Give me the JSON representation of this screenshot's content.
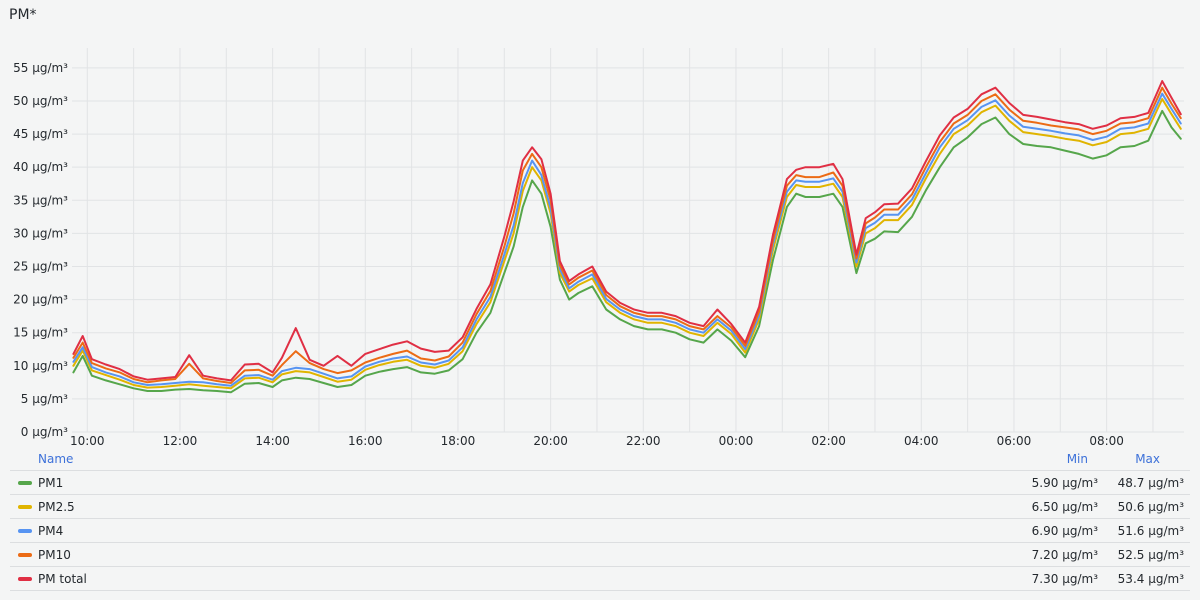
{
  "panel": {
    "title": "PM*"
  },
  "legend": {
    "name_header": "Name",
    "min_header": "Min",
    "max_header": "Max",
    "rows": [
      {
        "label": "PM1",
        "min": "5.90 µg/m³",
        "max": "48.7 µg/m³",
        "color": "#56a64b"
      },
      {
        "label": "PM2.5",
        "min": "6.50 µg/m³",
        "max": "50.6 µg/m³",
        "color": "#e0b400"
      },
      {
        "label": "PM4",
        "min": "6.90 µg/m³",
        "max": "51.6 µg/m³",
        "color": "#5794f2"
      },
      {
        "label": "PM10",
        "min": "7.20 µg/m³",
        "max": "52.5 µg/m³",
        "color": "#ec6b15"
      },
      {
        "label": "PM total",
        "min": "7.30 µg/m³",
        "max": "53.4 µg/m³",
        "color": "#e02f44"
      }
    ]
  },
  "chart_data": {
    "type": "line",
    "title": "PM*",
    "xlabel": "",
    "ylabel": "",
    "x_ticks": [
      "10:00",
      "12:00",
      "14:00",
      "16:00",
      "18:00",
      "20:00",
      "22:00",
      "00:00",
      "02:00",
      "04:00",
      "06:00",
      "08:00"
    ],
    "y_ticks": [
      "0 µg/m³",
      "5 µg/m³",
      "10 µg/m³",
      "15 µg/m³",
      "20 µg/m³",
      "25 µg/m³",
      "30 µg/m³",
      "35 µg/m³",
      "40 µg/m³",
      "45 µg/m³",
      "50 µg/m³",
      "55 µg/m³"
    ],
    "ylim": [
      0,
      58
    ],
    "xlim": [
      "09:40",
      "09:40 (+1 day)"
    ],
    "grid": true,
    "legend_position": "bottom",
    "x_hours": [
      9.7,
      9.9,
      10.1,
      10.4,
      10.7,
      11.0,
      11.3,
      11.6,
      11.9,
      12.2,
      12.5,
      12.8,
      13.1,
      13.4,
      13.7,
      14.0,
      14.2,
      14.5,
      14.8,
      15.1,
      15.4,
      15.7,
      16.0,
      16.3,
      16.6,
      16.9,
      17.2,
      17.5,
      17.8,
      18.1,
      18.4,
      18.7,
      19.0,
      19.2,
      19.4,
      19.6,
      19.8,
      20.0,
      20.2,
      20.4,
      20.6,
      20.9,
      21.2,
      21.5,
      21.8,
      22.1,
      22.4,
      22.7,
      23.0,
      23.3,
      23.6,
      23.9,
      24.2,
      24.5,
      24.8,
      25.1,
      25.3,
      25.5,
      25.8,
      26.1,
      26.3,
      26.6,
      26.8,
      27.0,
      27.2,
      27.5,
      27.8,
      28.1,
      28.4,
      28.7,
      29.0,
      29.3,
      29.6,
      29.9,
      30.2,
      30.5,
      30.8,
      31.1,
      31.4,
      31.7,
      32.0,
      32.3,
      32.6,
      32.9,
      33.2,
      33.4,
      33.6
    ],
    "series": [
      {
        "name": "PM1",
        "color": "#56a64b",
        "values": [
          9,
          11.5,
          8.5,
          7.8,
          7.2,
          6.6,
          6.2,
          6.2,
          6.4,
          6.5,
          6.3,
          6.2,
          6.0,
          7.3,
          7.4,
          6.8,
          7.8,
          8.2,
          8.0,
          7.4,
          6.8,
          7.1,
          8.5,
          9.1,
          9.5,
          9.8,
          9.0,
          8.8,
          9.3,
          11,
          15,
          18,
          24,
          28,
          34,
          38,
          36,
          31,
          23,
          20,
          21,
          22,
          18.5,
          17,
          16,
          15.5,
          15.5,
          15.0,
          14.0,
          13.5,
          15.5,
          13.8,
          11.3,
          16,
          26,
          34,
          36,
          35.5,
          35.5,
          36,
          34,
          24,
          28.5,
          29.2,
          30.3,
          30.2,
          32.5,
          36.5,
          40,
          43,
          44.5,
          46.5,
          47.5,
          45,
          43.5,
          43.2,
          43,
          42.5,
          42,
          41.3,
          41.8,
          43,
          43.2,
          44,
          48.5,
          46,
          44.3
        ]
      },
      {
        "name": "PM2.5",
        "color": "#e0b400",
        "values": [
          10,
          12.3,
          9.3,
          8.6,
          7.9,
          7.1,
          6.7,
          6.8,
          7.0,
          7.2,
          7.0,
          6.8,
          6.6,
          8.1,
          8.2,
          7.5,
          8.7,
          9.2,
          9.0,
          8.3,
          7.6,
          7.9,
          9.4,
          10.1,
          10.6,
          10.9,
          10.0,
          9.7,
          10.3,
          12.2,
          16.3,
          19.6,
          25.8,
          30,
          36.4,
          40,
          38,
          33,
          24,
          21.2,
          22.2,
          23.2,
          19.6,
          18,
          17,
          16.5,
          16.5,
          16.0,
          15.0,
          14.5,
          16.5,
          14.8,
          12.0,
          17,
          27.5,
          35.5,
          37.3,
          37,
          37,
          37.5,
          35.5,
          25,
          30,
          30.8,
          32,
          32,
          34.3,
          38.3,
          42,
          45,
          46.3,
          48.3,
          49.3,
          47,
          45.3,
          45,
          44.7,
          44.3,
          44,
          43.3,
          43.8,
          45,
          45.2,
          45.8,
          50.3,
          48,
          45.8
        ]
      },
      {
        "name": "PM4",
        "color": "#5794f2",
        "values": [
          10.6,
          12.8,
          9.8,
          9.0,
          8.4,
          7.5,
          7.1,
          7.2,
          7.4,
          7.6,
          7.5,
          7.2,
          7.0,
          8.5,
          8.6,
          7.9,
          9.2,
          9.7,
          9.5,
          8.8,
          8.1,
          8.4,
          9.9,
          10.6,
          11.1,
          11.4,
          10.5,
          10.2,
          10.8,
          12.8,
          17,
          20.4,
          26.8,
          31.2,
          37.6,
          41,
          38.8,
          33.8,
          24.6,
          21.7,
          22.7,
          23.8,
          20.1,
          18.5,
          17.5,
          17,
          17,
          16.5,
          15.5,
          15,
          17,
          15.3,
          12.5,
          17.6,
          28.3,
          36.3,
          38,
          37.8,
          37.8,
          38.3,
          36.3,
          25.6,
          30.8,
          31.6,
          32.8,
          32.8,
          35.1,
          39.1,
          43,
          45.8,
          47.1,
          49.1,
          50.1,
          47.8,
          46.1,
          45.8,
          45.5,
          45.1,
          44.8,
          44.1,
          44.6,
          45.8,
          46,
          46.6,
          51.1,
          48.8,
          46.6
        ]
      },
      {
        "name": "PM10",
        "color": "#ec6b15",
        "values": [
          11.2,
          13.5,
          10.4,
          9.6,
          9.0,
          8.0,
          7.5,
          7.8,
          8.0,
          10.3,
          8.1,
          7.7,
          7.4,
          9.3,
          9.4,
          8.5,
          10.1,
          12.2,
          10.4,
          9.5,
          8.9,
          9.3,
          10.5,
          11.2,
          11.8,
          12.3,
          11.1,
          10.8,
          11.4,
          13.5,
          17.8,
          21.3,
          28,
          33,
          39.5,
          42,
          40,
          35,
          25.2,
          22.3,
          23.3,
          24.4,
          20.7,
          19,
          18,
          17.5,
          17.5,
          17,
          16,
          15.5,
          17.5,
          15.8,
          13.0,
          18.2,
          29,
          37.2,
          38.8,
          38.5,
          38.5,
          39.2,
          37.2,
          26.2,
          31.5,
          32.4,
          33.6,
          33.6,
          35.9,
          40,
          43.8,
          46.6,
          47.9,
          50,
          51,
          48.7,
          47,
          46.7,
          46.3,
          46,
          45.7,
          45,
          45.5,
          46.6,
          46.8,
          47.4,
          52,
          49.6,
          47.4
        ]
      },
      {
        "name": "PM total",
        "color": "#e02f44",
        "values": [
          11.8,
          14.5,
          11.0,
          10.2,
          9.5,
          8.4,
          7.9,
          8.1,
          8.3,
          11.6,
          8.5,
          8.1,
          7.8,
          10.2,
          10.3,
          9.0,
          11.2,
          15.7,
          10.9,
          10.0,
          11.5,
          10.0,
          11.8,
          12.5,
          13.2,
          13.7,
          12.6,
          12.1,
          12.3,
          14.3,
          18.6,
          22.3,
          29.5,
          34.8,
          41,
          43,
          41.2,
          36,
          25.8,
          22.8,
          23.8,
          25,
          21.2,
          19.5,
          18.5,
          18,
          18,
          17.5,
          16.5,
          16,
          18.5,
          16.3,
          13.5,
          18.9,
          29.8,
          38.2,
          39.6,
          40,
          40,
          40.5,
          38.2,
          26.8,
          32.3,
          33.2,
          34.4,
          34.5,
          36.8,
          40.9,
          44.8,
          47.5,
          48.8,
          51,
          52,
          49.7,
          47.9,
          47.6,
          47.2,
          46.8,
          46.5,
          45.8,
          46.3,
          47.4,
          47.6,
          48.2,
          53,
          50.5,
          48
        ]
      }
    ]
  }
}
